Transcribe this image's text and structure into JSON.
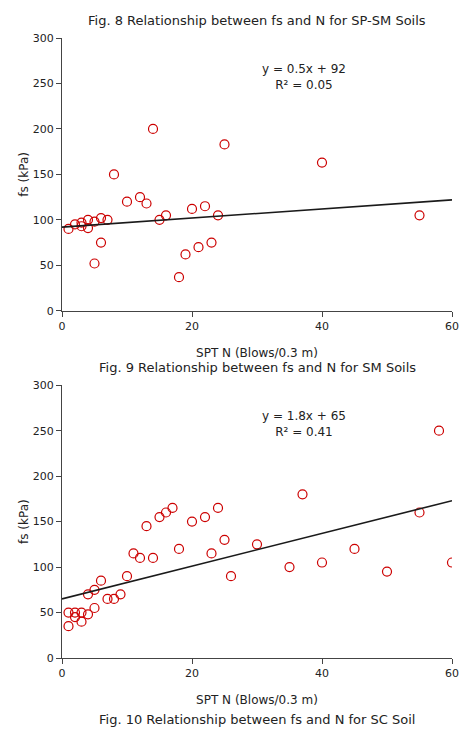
{
  "chart_data": [
    {
      "type": "scatter",
      "title": "Fig. 8 Relationship between fs and N for SP-SM Soils",
      "x_label": "SPT N (Blows/0.3 m)",
      "y_label": "fs (kPa)",
      "series": [
        {
          "type": "scatter",
          "marker": "circle-open",
          "color": "#cc0000",
          "x": [
            1,
            2,
            3,
            3,
            4,
            4,
            5,
            5,
            6,
            6,
            7,
            8,
            10,
            12,
            13,
            14,
            15,
            16,
            18,
            19,
            20,
            21,
            22,
            23,
            24,
            25,
            40,
            55
          ],
          "values": [
            90,
            95,
            93,
            97,
            91,
            100,
            52,
            98,
            75,
            102,
            100,
            150,
            120,
            125,
            118,
            200,
            100,
            105,
            37,
            62,
            112,
            70,
            115,
            75,
            105,
            183,
            163,
            105
          ]
        },
        {
          "type": "line",
          "line_style": "solid",
          "color": "#1a1a1a",
          "x": [
            0,
            60
          ],
          "values": [
            92,
            122
          ]
        }
      ],
      "annotations": [
        "y = 0.5x + 92",
        "R² = 0.05"
      ],
      "xlim": [
        0,
        60
      ],
      "ylim": [
        0,
        300
      ],
      "xticks": [
        0,
        20,
        40,
        60
      ],
      "yticks": [
        0,
        50,
        100,
        150,
        200,
        250,
        300
      ],
      "grid": false
    },
    {
      "type": "scatter",
      "title": "Fig. 9 Relationship between fs and N for SM Soils",
      "x_label": "SPT N (Blows/0.3 m)",
      "y_label": "fs (kPa)",
      "series": [
        {
          "type": "scatter",
          "marker": "circle-open",
          "color": "#cc0000",
          "x": [
            1,
            1,
            2,
            2,
            3,
            3,
            4,
            4,
            5,
            5,
            6,
            7,
            8,
            9,
            10,
            11,
            12,
            13,
            14,
            15,
            16,
            17,
            18,
            20,
            22,
            23,
            24,
            25,
            26,
            30,
            35,
            37,
            40,
            45,
            50,
            55,
            58,
            60
          ],
          "values": [
            35,
            50,
            45,
            50,
            40,
            50,
            48,
            70,
            55,
            75,
            85,
            65,
            65,
            70,
            90,
            115,
            110,
            145,
            110,
            155,
            160,
            165,
            120,
            150,
            155,
            115,
            165,
            130,
            90,
            125,
            100,
            180,
            105,
            120,
            95,
            160,
            250,
            105
          ]
        },
        {
          "type": "line",
          "line_style": "solid",
          "color": "#1a1a1a",
          "x": [
            0,
            60
          ],
          "values": [
            65,
            173
          ]
        }
      ],
      "annotations": [
        "y = 1.8x + 65",
        "R² = 0.41"
      ],
      "caption": "Fig. 10 Relationship between fs and N for SC Soil",
      "xlim": [
        0,
        60
      ],
      "ylim": [
        0,
        300
      ],
      "xticks": [
        0,
        20,
        40,
        60
      ],
      "yticks": [
        0,
        50,
        100,
        150,
        200,
        250,
        300
      ],
      "grid": false
    }
  ]
}
